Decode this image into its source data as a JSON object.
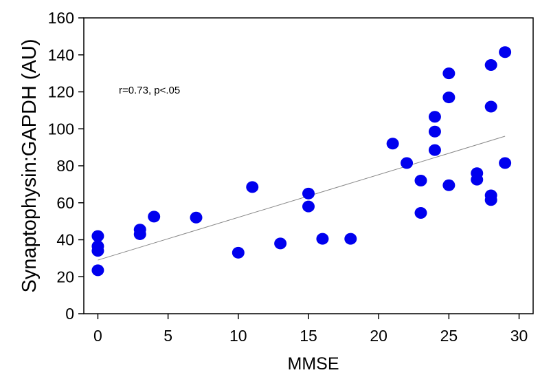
{
  "chart_data": {
    "type": "scatter",
    "title": "",
    "xlabel": "MMSE",
    "ylabel": "Synaptophysin:GAPDH (AU)",
    "annotation": "r=0.73, p<.05",
    "xlim": [
      -1,
      31
    ],
    "ylim": [
      0,
      160
    ],
    "x_ticks": [
      0,
      5,
      10,
      15,
      20,
      25,
      30
    ],
    "y_ticks": [
      0,
      20,
      40,
      60,
      80,
      100,
      120,
      140,
      160
    ],
    "grid": false,
    "point_color": "#0000ee",
    "trendline_color": "#888888",
    "trendline": {
      "x": [
        0,
        29
      ],
      "y": [
        29,
        96
      ]
    },
    "points": [
      {
        "x": 0,
        "y": 42
      },
      {
        "x": 0,
        "y": 36.5
      },
      {
        "x": 0,
        "y": 34
      },
      {
        "x": 0,
        "y": 23.5
      },
      {
        "x": 3,
        "y": 45.5
      },
      {
        "x": 3,
        "y": 43
      },
      {
        "x": 4,
        "y": 52.5
      },
      {
        "x": 7,
        "y": 52
      },
      {
        "x": 10,
        "y": 33
      },
      {
        "x": 11,
        "y": 68.5
      },
      {
        "x": 13,
        "y": 38
      },
      {
        "x": 15,
        "y": 65
      },
      {
        "x": 15,
        "y": 58
      },
      {
        "x": 16,
        "y": 40.5
      },
      {
        "x": 18,
        "y": 40.5
      },
      {
        "x": 21,
        "y": 92
      },
      {
        "x": 22,
        "y": 81.5
      },
      {
        "x": 23,
        "y": 72
      },
      {
        "x": 23,
        "y": 54.5
      },
      {
        "x": 24,
        "y": 106.5
      },
      {
        "x": 24,
        "y": 98.5
      },
      {
        "x": 24,
        "y": 88.5
      },
      {
        "x": 25,
        "y": 130
      },
      {
        "x": 25,
        "y": 117
      },
      {
        "x": 25,
        "y": 69.5
      },
      {
        "x": 27,
        "y": 76
      },
      {
        "x": 27,
        "y": 72.5
      },
      {
        "x": 28,
        "y": 134.5
      },
      {
        "x": 28,
        "y": 112
      },
      {
        "x": 28,
        "y": 64
      },
      {
        "x": 28,
        "y": 61.5
      },
      {
        "x": 29,
        "y": 141.5
      },
      {
        "x": 29,
        "y": 81.5
      }
    ]
  }
}
